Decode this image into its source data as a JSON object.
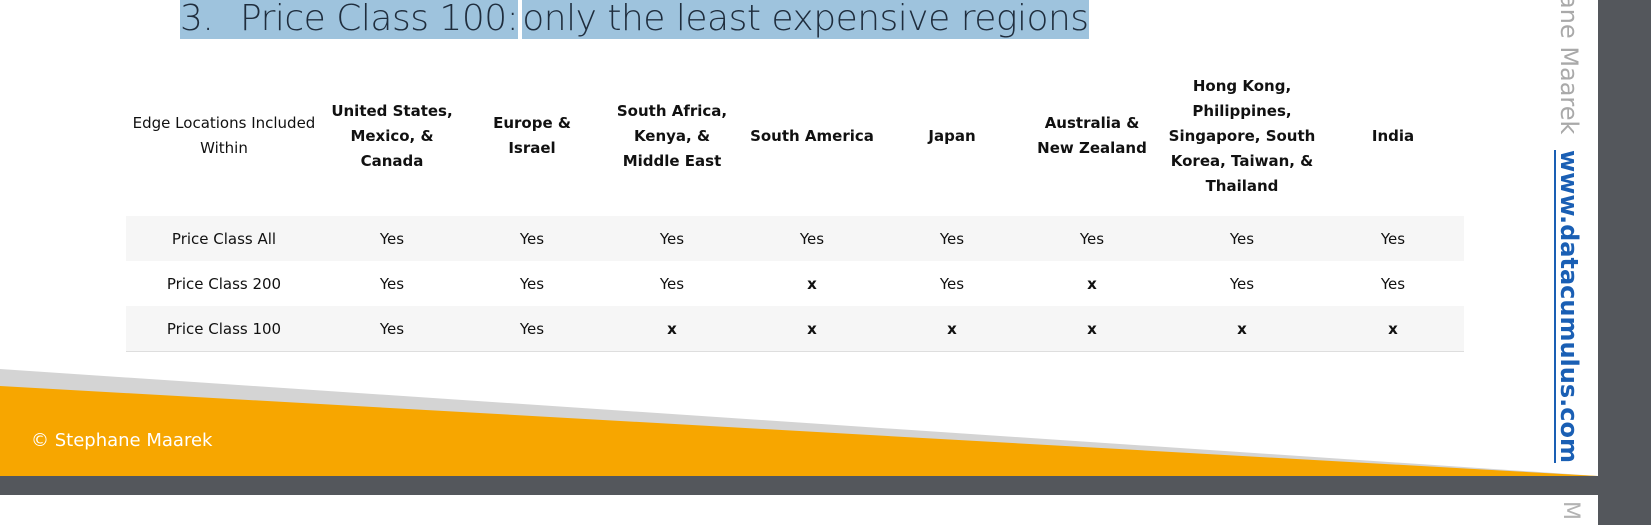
{
  "slide": {
    "title_number": "3.",
    "title_part1": "Price Class 100:",
    "title_part2": "only the least expensive regions",
    "footer": "© Stephane Maarek",
    "side_name": "ane Maarek",
    "side_link": "www.datacumulus.com"
  },
  "table": {
    "headers": [
      "Edge Locations Included Within",
      "United States, Mexico, & Canada",
      "Europe & Israel",
      "South Africa, Kenya, & Middle East",
      "South America",
      "Japan",
      "Australia & New Zealand",
      "Hong Kong, Philippines, Singapore, South Korea, Taiwan, & Thailand",
      "India"
    ],
    "rows": [
      {
        "label": "Price Class All",
        "cells": [
          "Yes",
          "Yes",
          "Yes",
          "Yes",
          "Yes",
          "Yes",
          "Yes",
          "Yes"
        ]
      },
      {
        "label": "Price Class 200",
        "cells": [
          "Yes",
          "Yes",
          "Yes",
          "x",
          "Yes",
          "x",
          "Yes",
          "Yes"
        ]
      },
      {
        "label": "Price Class 100",
        "cells": [
          "Yes",
          "Yes",
          "x",
          "x",
          "x",
          "x",
          "x",
          "x"
        ]
      }
    ]
  },
  "colors": {
    "orange_band": "#f7a600",
    "gray_band": "#d4d4d4",
    "highlight": "#9ec3dd",
    "link": "#1a5fb4",
    "frame": "#54575c"
  }
}
